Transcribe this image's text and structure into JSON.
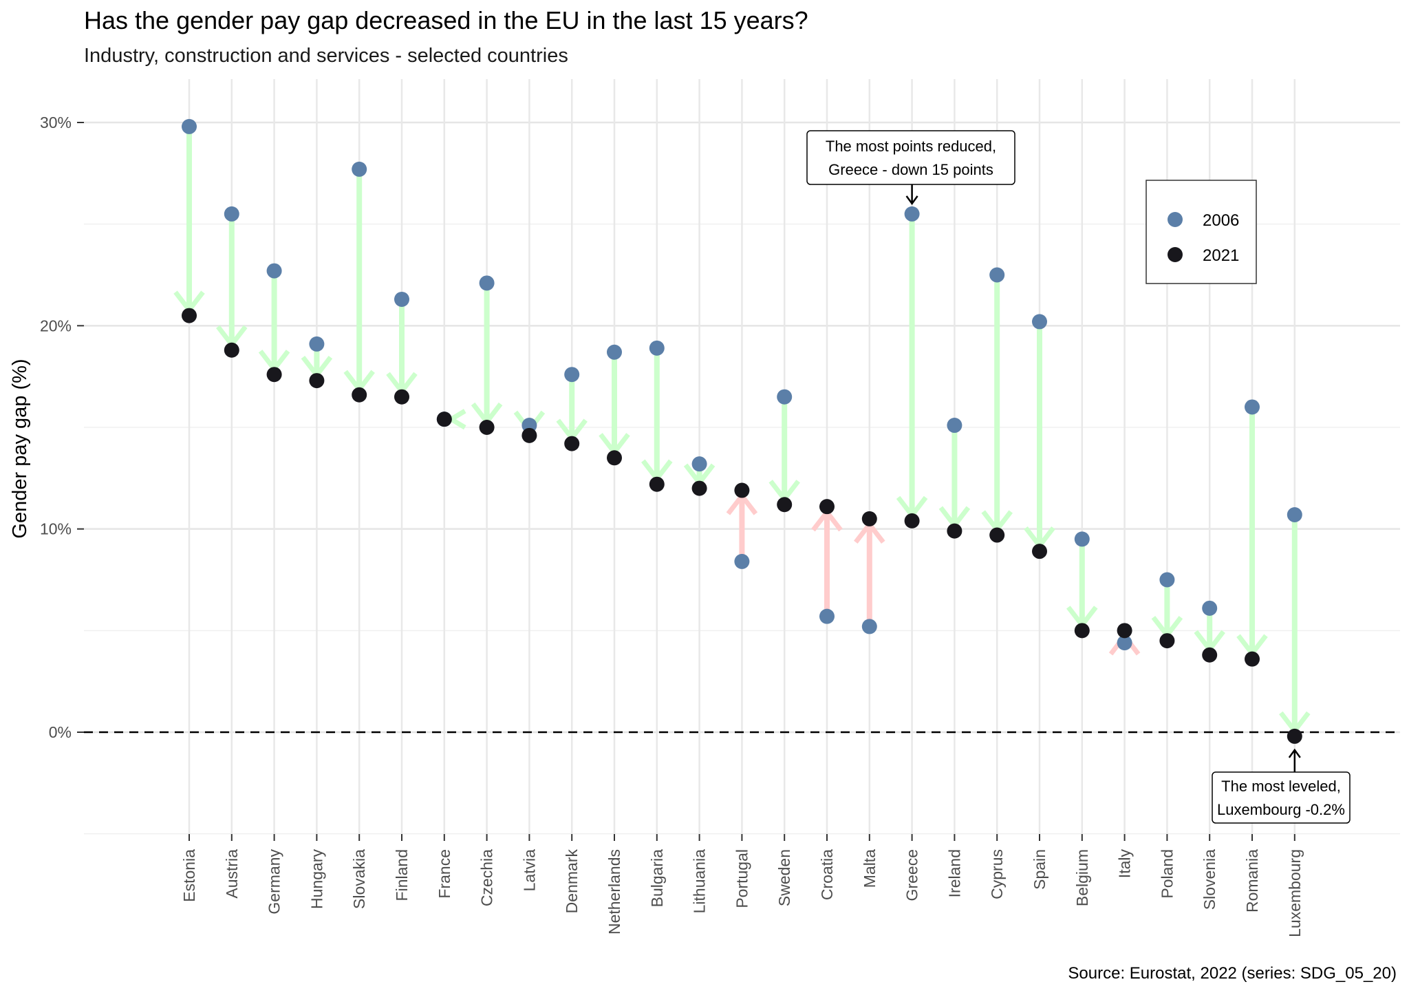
{
  "chart_data": {
    "type": "dumbbell",
    "title": "Has the gender pay gap decreased in the EU in the last 15 years?",
    "subtitle": "Industry, construction and services - selected countries",
    "ylabel": "Gender pay gap (%)",
    "xlabel": "",
    "caption": "Source: Eurostat, 2022 (series: SDG_05_20)",
    "ylim": [
      -5,
      32
    ],
    "y_ticks": [
      0,
      10,
      20,
      30
    ],
    "y_tick_labels": [
      "0%",
      "10%",
      "20%",
      "30%"
    ],
    "reference_line": 0,
    "categories": [
      "Estonia",
      "Austria",
      "Germany",
      "Hungary",
      "Slovakia",
      "Finland",
      "France",
      "Czechia",
      "Latvia",
      "Denmark",
      "Netherlands",
      "Bulgaria",
      "Lithuania",
      "Portugal",
      "Sweden",
      "Croatia",
      "Malta",
      "Greece",
      "Ireland",
      "Cyprus",
      "Spain",
      "Belgium",
      "Italy",
      "Poland",
      "Slovenia",
      "Romania",
      "Luxembourg"
    ],
    "series": [
      {
        "name": "2006",
        "color": "#5b7fa8",
        "values": [
          29.8,
          25.5,
          22.7,
          19.1,
          27.7,
          21.3,
          15.4,
          22.1,
          15.1,
          17.6,
          18.7,
          18.9,
          13.2,
          8.4,
          16.5,
          5.7,
          5.2,
          25.5,
          15.1,
          22.5,
          20.2,
          9.5,
          4.4,
          7.5,
          6.1,
          16.0,
          10.7
        ]
      },
      {
        "name": "2021",
        "color": "#18171c",
        "values": [
          20.5,
          18.8,
          17.6,
          17.3,
          16.6,
          16.5,
          15.4,
          15.0,
          14.6,
          14.2,
          13.5,
          12.2,
          12.0,
          11.9,
          11.2,
          11.1,
          10.5,
          10.4,
          9.9,
          9.7,
          8.9,
          5.0,
          5.0,
          4.5,
          3.8,
          3.6,
          -0.2
        ]
      }
    ],
    "arrow_colors": {
      "decrease": "#ccffcc",
      "increase": "#ffcccc"
    },
    "legend": {
      "items": [
        "2006",
        "2021"
      ],
      "placement": "top-right"
    },
    "annotations": [
      {
        "lines": [
          "The most points reduced,",
          "Greece - down 15 points"
        ],
        "country": "Greece"
      },
      {
        "lines": [
          "The most leveled,",
          "Luxembourg -0.2%"
        ],
        "country": "Luxembourg"
      }
    ]
  }
}
